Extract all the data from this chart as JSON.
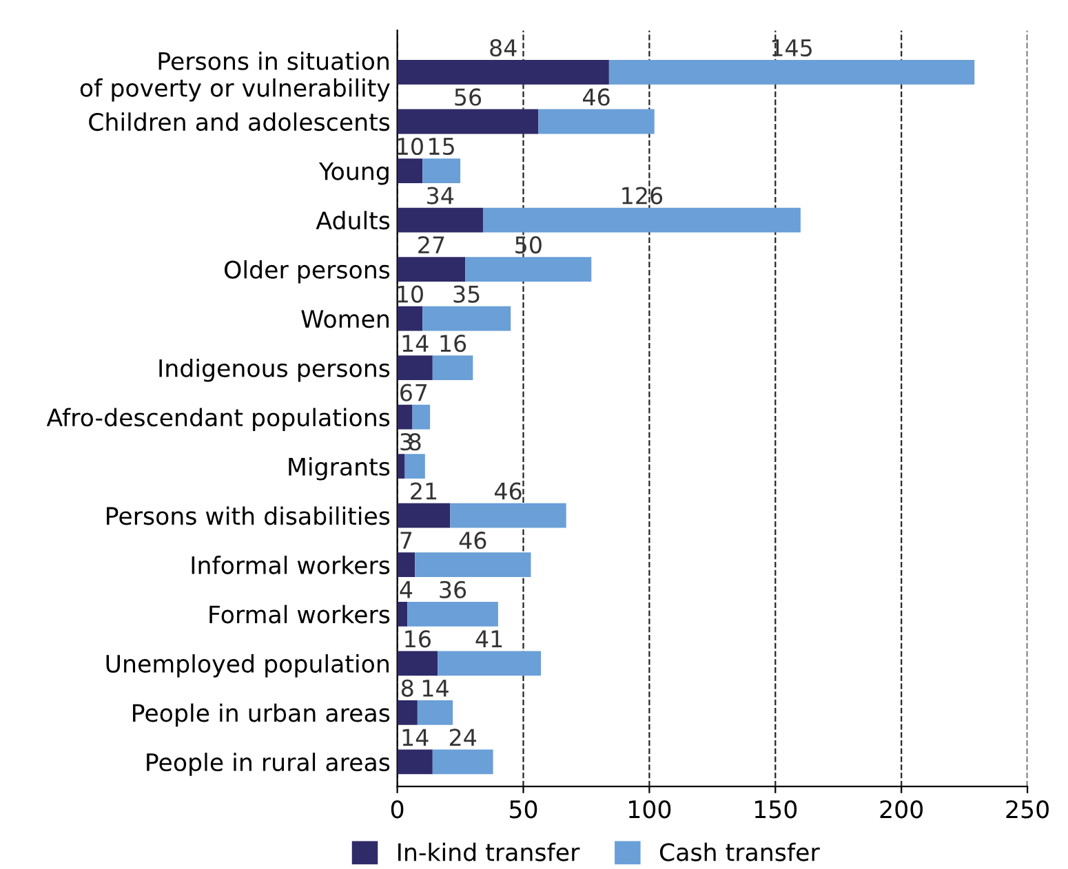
{
  "chart_data": {
    "type": "bar",
    "orientation": "horizontal",
    "stacked": true,
    "data_labels": true,
    "categories": [
      "Persons in situation\nof poverty or vulnerability",
      "Children and adolescents",
      "Young",
      "Adults",
      "Older persons",
      "Women",
      "Indigenous persons",
      "Afro-descendant populations",
      "Migrants",
      "Persons with disabilities",
      "Informal workers",
      "Formal workers",
      "Unemployed population",
      "People in urban areas",
      "People in rural areas"
    ],
    "series": [
      {
        "name": "In-kind transfer",
        "color": "#2e2b68",
        "values": [
          84,
          56,
          10,
          34,
          27,
          10,
          14,
          6,
          3,
          21,
          7,
          4,
          16,
          8,
          14
        ]
      },
      {
        "name": "Cash transfer",
        "color": "#6a9fd8",
        "values": [
          145,
          46,
          15,
          126,
          50,
          35,
          16,
          7,
          8,
          46,
          46,
          36,
          41,
          14,
          24
        ]
      }
    ],
    "xlim": [
      0,
      250
    ],
    "xticks": [
      0,
      50,
      100,
      150,
      200,
      250
    ],
    "grid": "x",
    "line_style": "dashed",
    "legend": "bottom"
  }
}
